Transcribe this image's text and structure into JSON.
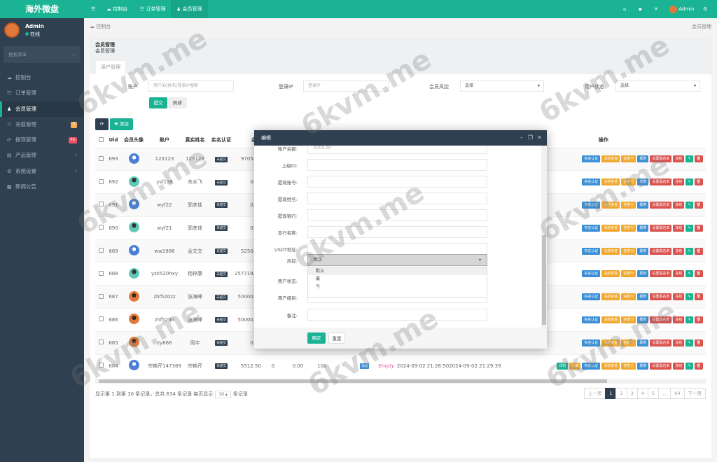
{
  "app": {
    "logo": "海外微盘"
  },
  "user": {
    "name": "Admin",
    "status": "在线"
  },
  "sidebar": {
    "search_placeholder": "搜索菜单",
    "items": [
      {
        "label": "控制台",
        "icon": "dashboard-icon"
      },
      {
        "label": "订单管理",
        "icon": "list-icon"
      },
      {
        "label": "会员管理",
        "icon": "users-icon",
        "active": true
      },
      {
        "label": "充值管理",
        "icon": "recharge-icon",
        "badge": "0",
        "badge_color": "#f8ac59"
      },
      {
        "label": "提现管理",
        "icon": "withdraw-icon",
        "badge": "45",
        "badge_color": "#ed5565"
      },
      {
        "label": "产品管理",
        "icon": "product-icon",
        "chevron": true
      },
      {
        "label": "系统设置",
        "icon": "settings-icon",
        "chevron": true
      },
      {
        "label": "新闻公告",
        "icon": "news-icon"
      }
    ]
  },
  "topnav": {
    "tabs": [
      "控制台",
      "订单管理",
      "会员管理"
    ],
    "user": "Admin"
  },
  "breadcrumb": {
    "left": "控制台",
    "right": "会员管理"
  },
  "page": {
    "title": "会员管理",
    "subtitle": "会员管理",
    "tab": "用户管理"
  },
  "filters": {
    "account_label": "账户",
    "account_placeholder": "用户ID|姓名|登录IP搜索",
    "ip_label": "登录IP",
    "ip_placeholder": "登录IP",
    "risk_label": "会员风控",
    "risk_value": "选择",
    "status_label": "用户状态",
    "status_value": "选择",
    "submit": "提交",
    "refresh": "刷新"
  },
  "toolbar": {
    "add": "添加"
  },
  "table": {
    "headers": [
      "Uid",
      "会员头像",
      "账户",
      "真实姓名",
      "实名认证",
      "余额"
    ],
    "ops_header": "操作",
    "rows": [
      {
        "uid": "693",
        "avatar": "blue",
        "account": "123123",
        "name": "123123",
        "kyc": "未提交",
        "balance": "9705.00"
      },
      {
        "uid": "692",
        "avatar": "teal",
        "account": "ysf138",
        "name": "佘水飞",
        "kyc": "未提交",
        "balance": "0.00"
      },
      {
        "uid": "691",
        "avatar": "blue",
        "account": "wyf22",
        "name": "郭彦佳",
        "kyc": "未提交",
        "balance": "0.00"
      },
      {
        "uid": "690",
        "avatar": "teal",
        "account": "wyf21",
        "name": "郭彦佳",
        "kyc": "未提交",
        "balance": "0.00"
      },
      {
        "uid": "689",
        "avatar": "blue",
        "account": "ww1986",
        "name": "孟文文",
        "kyc": "未提交",
        "balance": "5250.00"
      },
      {
        "uid": "688",
        "avatar": "teal",
        "account": "yzk520hxy",
        "name": "杨梓康",
        "kyc": "未提交",
        "balance": "257719.88"
      },
      {
        "uid": "687",
        "avatar": "orange",
        "account": "zhf520zz",
        "name": "张海峰",
        "kyc": "未提交",
        "balance": "50000.00"
      },
      {
        "uid": "686",
        "avatar": "orange",
        "account": "zhf520lr",
        "name": "张海峰",
        "kyc": "未提交",
        "balance": "50000.00"
      },
      {
        "uid": "685",
        "avatar": "orange",
        "account": "zy666",
        "name": "周宇",
        "kyc": "未提交",
        "balance": "0.00"
      },
      {
        "uid": "684",
        "avatar": "blue",
        "account": "宗艳芹147369",
        "name": "宗艳芹",
        "kyc": "未提交",
        "balance": "5512.50",
        "extra": [
          "0",
          "0.00",
          "100",
          "-"
        ],
        "level": "高级",
        "remark": "Empty",
        "created": "2024-09-02 21:26:50",
        "login": "2024-09-02 21:29:39",
        "extra_ops": true
      }
    ],
    "ops": [
      {
        "label": "实名认证",
        "color": "#3a8fd6"
      },
      {
        "label": "冻结资金",
        "color": "#f0a830"
      },
      {
        "label": "信誉分",
        "color": "#f0a830"
      },
      {
        "label": "报表",
        "color": "#3a8fd6"
      },
      {
        "label": "设置黑名单",
        "color": "#d9534f"
      },
      {
        "label": "冻结",
        "color": "#d9534f"
      },
      {
        "label": "✎",
        "color": "#1ab394"
      },
      {
        "label": "🗑",
        "color": "#d9534f"
      }
    ],
    "extra_ops": [
      {
        "label": "详情",
        "color": "#1ab394"
      },
      {
        "label": "分数",
        "color": "#f0a830"
      }
    ]
  },
  "pagination": {
    "info_prefix": "显示第 1 到第 10 条记录，总共 634 条记录 每页显示",
    "per_page": "10",
    "info_suffix": "条记录",
    "prev": "上一页",
    "pages": [
      "1",
      "2",
      "3",
      "4",
      "5",
      "...",
      "64"
    ],
    "next": "下一页"
  },
  "modal": {
    "title": "编辑",
    "fields": [
      {
        "label": "账户余额:",
        "value": "9705.00"
      },
      {
        "label": "上级ID:",
        "value": ""
      },
      {
        "label": "提现账号:",
        "value": ""
      },
      {
        "label": "提现姓名:",
        "value": ""
      },
      {
        "label": "提现银行:",
        "value": ""
      },
      {
        "label": "支行名称:",
        "value": ""
      },
      {
        "label": "USDT地址:",
        "value": ""
      }
    ],
    "risk_label": "风控:",
    "risk_value": "默认",
    "risk_options": [
      "默认",
      "赢",
      "亏"
    ],
    "status_label": "用户状态:",
    "level_label": "用户级别:",
    "remark_label": "备注:",
    "confirm": "确定",
    "reset": "重置"
  },
  "watermark": "6kvm.me",
  "colors": {
    "accent": "#1ab394",
    "sidebar": "#2f4050"
  }
}
